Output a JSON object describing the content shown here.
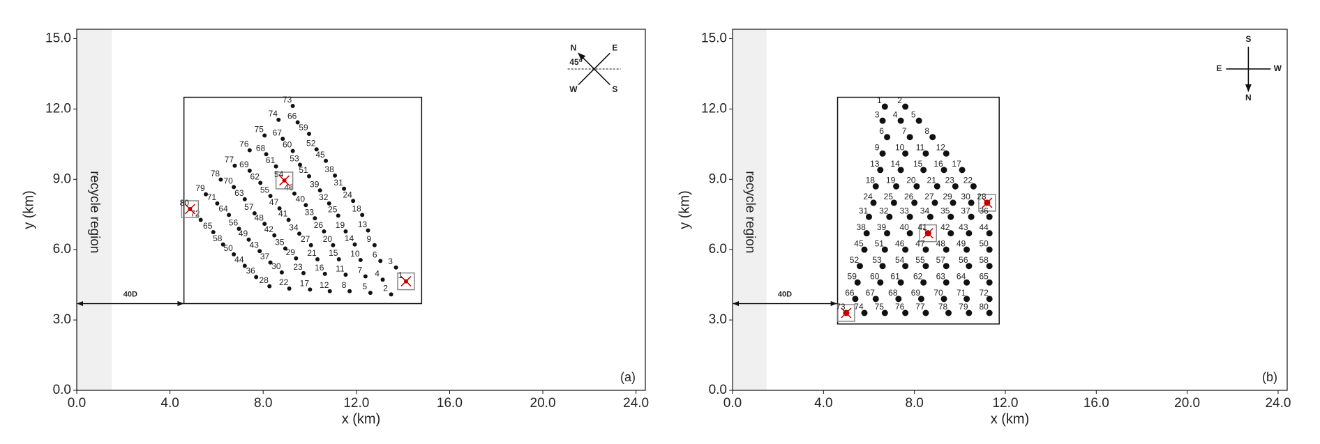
{
  "chart_data": [
    {
      "type": "scatter",
      "panel_label": "(a)",
      "x_label": "x (km)",
      "y_label": "y (km)",
      "xlim": [
        0,
        24.4
      ],
      "ylim": [
        0,
        15.4
      ],
      "xticks": [
        {
          "value": 0,
          "label": "0.0"
        },
        {
          "value": 4,
          "label": "4.0"
        },
        {
          "value": 8,
          "label": "8.0"
        },
        {
          "value": 12,
          "label": "12.0"
        },
        {
          "value": 16,
          "label": "16.0"
        },
        {
          "value": 20,
          "label": "20.0"
        },
        {
          "value": 24,
          "label": "24.0"
        }
      ],
      "yticks": [
        {
          "value": 0,
          "label": "0.0"
        },
        {
          "value": 3,
          "label": "3.0"
        },
        {
          "value": 6,
          "label": "6.0"
        },
        {
          "value": 9,
          "label": "9.0"
        },
        {
          "value": 12,
          "label": "12.0"
        },
        {
          "value": 15,
          "label": "15.0"
        }
      ],
      "color": "#111111",
      "highlight_color": "#c00000",
      "marker_size": 3,
      "highlighted": [
        "1",
        "54",
        "80"
      ],
      "recycle_region": {
        "label": "recycle region",
        "xlim": [
          0,
          1.5
        ]
      },
      "spacing_annotation": {
        "label": "40D",
        "x": [
          0,
          4.6
        ],
        "y": 3.7
      },
      "farm_bounds": {
        "xlim": [
          4.6,
          14.8
        ],
        "ylim": [
          3.7,
          12.5
        ]
      },
      "compass": {
        "north": "N",
        "east": "E",
        "south": "S",
        "west": "W",
        "angle": "45⁰"
      },
      "point_labels": [
        "1",
        "2",
        "3",
        "4",
        "5",
        "6",
        "7",
        "8",
        "9",
        "10",
        "11",
        "12",
        "13",
        "14",
        "15",
        "16",
        "17",
        "18",
        "19",
        "20",
        "21",
        "22",
        "23",
        "24",
        "25",
        "26",
        "27",
        "28",
        "29",
        "30",
        "31",
        "32",
        "33",
        "34",
        "35",
        "36",
        "37",
        "38",
        "39",
        "40",
        "41",
        "42",
        "43",
        "44",
        "45",
        "46",
        "47",
        "48",
        "49",
        "50",
        "51",
        "52",
        "53",
        "54",
        "55",
        "56",
        "57",
        "58",
        "59",
        "60",
        "61",
        "62",
        "63",
        "64",
        "65",
        "66",
        "67",
        "68",
        "69",
        "70",
        "71",
        "72",
        "73",
        "74",
        "75",
        "76",
        "77",
        "78",
        "79",
        "80"
      ],
      "x": [
        14.13,
        13.49,
        13.7,
        13.13,
        12.6,
        13.03,
        12.39,
        11.71,
        12.78,
        12.18,
        11.54,
        10.86,
        12.5,
        11.93,
        11.25,
        10.65,
        10.01,
        12.25,
        11.54,
        11.0,
        10.33,
        9.12,
        9.73,
        11.86,
        11.22,
        10.61,
        10.05,
        8.27,
        9.41,
        8.8,
        11.47,
        10.83,
        10.22,
        9.55,
        8.95,
        7.7,
        8.31,
        11.08,
        10.44,
        9.83,
        9.09,
        8.48,
        7.85,
        7.21,
        10.69,
        9.34,
        8.7,
        8.06,
        7.38,
        6.74,
        9.97,
        10.29,
        9.58,
        8.91,
        8.31,
        6.96,
        7.63,
        6.28,
        9.97,
        9.27,
        8.55,
        7.88,
        7.21,
        6.53,
        5.86,
        9.48,
        8.84,
        8.13,
        7.42,
        6.74,
        6.03,
        5.32,
        9.27,
        8.66,
        8.06,
        7.42,
        6.78,
        6.18,
        5.54,
        4.86
      ],
      "y": [
        4.65,
        4.09,
        5.24,
        4.72,
        4.16,
        5.52,
        4.86,
        4.23,
        6.19,
        5.56,
        4.93,
        4.23,
        6.82,
        6.22,
        5.59,
        4.97,
        4.3,
        7.48,
        6.78,
        6.19,
        5.59,
        4.34,
        5.0,
        8.08,
        7.45,
        6.78,
        6.19,
        4.44,
        5.63,
        5.03,
        8.6,
        7.97,
        7.34,
        6.68,
        6.05,
        4.83,
        5.45,
        9.16,
        8.53,
        7.9,
        7.27,
        6.61,
        5.94,
        5.31,
        9.79,
        8.39,
        7.76,
        7.1,
        6.43,
        5.8,
        9.13,
        10.28,
        9.62,
        8.95,
        8.29,
        6.89,
        7.55,
        6.22,
        10.94,
        10.21,
        9.55,
        8.85,
        8.15,
        7.48,
        6.75,
        11.43,
        10.73,
        10.07,
        9.37,
        8.67,
        7.97,
        7.27,
        12.13,
        11.54,
        10.87,
        10.24,
        9.58,
        8.99,
        8.36,
        7.73
      ]
    },
    {
      "type": "scatter",
      "panel_label": "(b)",
      "x_label": "x (km)",
      "y_label": "y (km)",
      "xlim": [
        0,
        24.4
      ],
      "ylim": [
        0,
        15.4
      ],
      "xticks": [
        {
          "value": 0,
          "label": "0.0"
        },
        {
          "value": 4,
          "label": "4.0"
        },
        {
          "value": 8,
          "label": "8.0"
        },
        {
          "value": 12,
          "label": "12.0"
        },
        {
          "value": 16,
          "label": "16.0"
        },
        {
          "value": 20,
          "label": "20.0"
        },
        {
          "value": 24,
          "label": "24.0"
        }
      ],
      "yticks": [
        {
          "value": 0,
          "label": "0.0"
        },
        {
          "value": 3,
          "label": "3.0"
        },
        {
          "value": 6,
          "label": "6.0"
        },
        {
          "value": 9,
          "label": "9.0"
        },
        {
          "value": 12,
          "label": "12.0"
        },
        {
          "value": 15,
          "label": "15.0"
        }
      ],
      "color": "#111111",
      "highlight_color": "#c00000",
      "marker_size": 4.5,
      "highlighted": [
        "28",
        "41",
        "73"
      ],
      "recycle_region": {
        "label": "recycle region",
        "xlim": [
          0,
          1.5
        ]
      },
      "spacing_annotation": {
        "label": "40D",
        "x": [
          0,
          4.6
        ],
        "y": 3.7
      },
      "farm_bounds": {
        "xlim": [
          4.62,
          11.73
        ],
        "ylim": [
          2.83,
          12.5
        ]
      },
      "compass": {
        "north": "N",
        "east": "E",
        "south": "S",
        "west": "W"
      },
      "point_labels": [
        "1",
        "2",
        "3",
        "4",
        "5",
        "6",
        "7",
        "8",
        "9",
        "10",
        "11",
        "12",
        "13",
        "14",
        "15",
        "16",
        "17",
        "18",
        "19",
        "20",
        "21",
        "22",
        "23",
        "24",
        "25",
        "26",
        "27",
        "28",
        "29",
        "30",
        "31",
        "32",
        "33",
        "34",
        "35",
        "36",
        "37",
        "38",
        "39",
        "40",
        "41",
        "42",
        "43",
        "44",
        "45",
        "46",
        "47",
        "48",
        "49",
        "50",
        "51",
        "52",
        "53",
        "54",
        "55",
        "56",
        "57",
        "58",
        "59",
        "60",
        "61",
        "62",
        "63",
        "64",
        "65",
        "66",
        "67",
        "68",
        "69",
        "70",
        "71",
        "72",
        "73",
        "74",
        "75",
        "76",
        "77",
        "78",
        "79",
        "80"
      ],
      "x": [
        6.7,
        7.6,
        6.6,
        7.4,
        8.2,
        6.8,
        7.8,
        8.8,
        6.6,
        7.6,
        8.5,
        9.4,
        6.5,
        7.4,
        8.4,
        9.3,
        10.1,
        6.3,
        7.2,
        8.1,
        9.0,
        10.6,
        9.8,
        6.2,
        7.1,
        8.0,
        8.9,
        11.2,
        9.7,
        10.5,
        6.0,
        6.9,
        7.8,
        8.7,
        9.6,
        11.3,
        10.5,
        5.9,
        6.8,
        7.8,
        8.6,
        9.6,
        10.4,
        11.3,
        5.8,
        7.6,
        8.5,
        9.4,
        10.3,
        11.3,
        6.7,
        5.6,
        6.6,
        7.6,
        8.5,
        10.4,
        9.4,
        11.3,
        5.5,
        6.5,
        7.4,
        8.4,
        9.4,
        10.3,
        11.3,
        5.4,
        6.3,
        7.3,
        8.3,
        9.3,
        10.3,
        11.3,
        5.0,
        5.8,
        6.7,
        7.6,
        8.5,
        9.5,
        10.4,
        11.3
      ],
      "y": [
        12.1,
        12.1,
        11.5,
        11.5,
        11.5,
        10.8,
        10.8,
        10.8,
        10.1,
        10.1,
        10.1,
        10.1,
        9.4,
        9.4,
        9.4,
        9.4,
        9.4,
        8.7,
        8.7,
        8.7,
        8.7,
        8.7,
        8.7,
        8.0,
        8.0,
        8.0,
        8.0,
        8.0,
        8.0,
        8.0,
        7.4,
        7.4,
        7.4,
        7.4,
        7.4,
        7.4,
        7.4,
        6.7,
        6.7,
        6.7,
        6.7,
        6.7,
        6.7,
        6.7,
        6.0,
        6.0,
        6.0,
        6.0,
        6.0,
        6.0,
        6.0,
        5.3,
        5.3,
        5.3,
        5.3,
        5.3,
        5.3,
        5.3,
        4.6,
        4.6,
        4.6,
        4.6,
        4.6,
        4.6,
        4.6,
        3.9,
        3.9,
        3.9,
        3.9,
        3.9,
        3.9,
        3.9,
        3.3,
        3.3,
        3.3,
        3.3,
        3.3,
        3.3,
        3.3,
        3.3
      ]
    }
  ]
}
